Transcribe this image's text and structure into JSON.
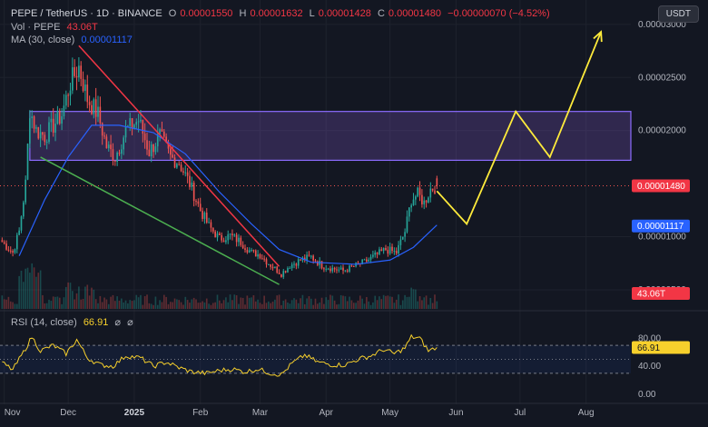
{
  "header": {
    "symbol": "PEPE / TetherUS · 1D · BINANCE",
    "open_label": "O",
    "open": "0.00001550",
    "high_label": "H",
    "high": "0.00001632",
    "low_label": "L",
    "low": "0.00001428",
    "close_label": "C",
    "close": "0.00001480",
    "change": "−0.00000070 (−4.52%)",
    "vol_label": "Vol · PEPE",
    "vol_value": "43.06T",
    "ma_label": "MA (30, close)",
    "ma_value": "0.00001117",
    "rsi_label": "RSI (14, close)",
    "rsi_value": "66.91",
    "eye_icon_1": "⌀",
    "eye_icon_2": "⌀"
  },
  "currency": "USDT",
  "colors": {
    "up": "#26a69a",
    "down": "#ef5350",
    "ma": "#2962ff",
    "rsi": "#f7d02c",
    "zone": "#7e57c2",
    "trend_red": "#f23645",
    "trend_green": "#4caf50",
    "projection": "#ffeb3b",
    "background": "#131722"
  },
  "price_tags": {
    "last_price": "0.00001480",
    "ma_price": "0.00001117",
    "volume": "43.06T",
    "rsi": "66.91"
  },
  "chart_data": [
    {
      "type": "candlestick",
      "title": "PEPE / TetherUS · 1D · BINANCE",
      "y_ticks": [
        "0.00003000",
        "0.00002500",
        "0.00002000",
        "0.00001000",
        "0.00000500"
      ],
      "y_tick_values": [
        3e-05,
        2.5e-05,
        2e-05,
        1e-05,
        5e-06
      ],
      "ylim": [
        3.2e-06,
        3.23e-05
      ],
      "x_ticks": [
        "Nov",
        "Dec",
        "2025",
        "Feb",
        "Mar",
        "Apr",
        "May",
        "Jun",
        "Jul",
        "Aug"
      ],
      "x_tick_dates": [
        "2024-11-01",
        "2024-12-01",
        "2025-01-01",
        "2025-02-01",
        "2025-03-01",
        "2025-04-01",
        "2025-05-01",
        "2025-06-01",
        "2025-07-01",
        "2025-08-01"
      ],
      "xlim": [
        "2024-10-30",
        "2025-08-22"
      ],
      "close_series": {
        "start_date": "2024-10-31",
        "end_date": "2025-05-23",
        "values_key_dates": [
          [
            "2024-10-31",
            9.5e-06
          ],
          [
            "2024-11-05",
            8.5e-06
          ],
          [
            "2024-11-08",
            1.05e-05
          ],
          [
            "2024-11-11",
            1.5e-05
          ],
          [
            "2024-11-13",
            2.2e-05
          ],
          [
            "2024-11-16",
            2e-05
          ],
          [
            "2024-11-20",
            1.95e-05
          ],
          [
            "2024-11-24",
            2.05e-05
          ],
          [
            "2024-11-28",
            2.15e-05
          ],
          [
            "2024-12-02",
            2.45e-05
          ],
          [
            "2024-12-06",
            2.6e-05
          ],
          [
            "2024-12-10",
            2.3e-05
          ],
          [
            "2024-12-15",
            2.15e-05
          ],
          [
            "2024-12-19",
            1.85e-05
          ],
          [
            "2024-12-23",
            1.75e-05
          ],
          [
            "2024-12-28",
            2e-05
          ],
          [
            "2025-01-03",
            2.1e-05
          ],
          [
            "2025-01-08",
            1.8e-05
          ],
          [
            "2025-01-13",
            1.95e-05
          ],
          [
            "2025-01-18",
            1.75e-05
          ],
          [
            "2025-01-22",
            1.7e-05
          ],
          [
            "2025-01-27",
            1.5e-05
          ],
          [
            "2025-02-01",
            1.25e-05
          ],
          [
            "2025-02-05",
            1.1e-05
          ],
          [
            "2025-02-10",
            9.8e-06
          ],
          [
            "2025-02-15",
            1.01e-05
          ],
          [
            "2025-02-20",
            9.5e-06
          ],
          [
            "2025-02-25",
            8.5e-06
          ],
          [
            "2025-03-01",
            8.3e-06
          ],
          [
            "2025-03-05",
            7.5e-06
          ],
          [
            "2025-03-11",
            6.5e-06
          ],
          [
            "2025-03-15",
            7.3e-06
          ],
          [
            "2025-03-20",
            7.8e-06
          ],
          [
            "2025-03-25",
            8.1e-06
          ],
          [
            "2025-03-30",
            7.3e-06
          ],
          [
            "2025-04-04",
            7e-06
          ],
          [
            "2025-04-09",
            6.8e-06
          ],
          [
            "2025-04-14",
            7.2e-06
          ],
          [
            "2025-04-19",
            7.6e-06
          ],
          [
            "2025-04-24",
            8.2e-06
          ],
          [
            "2025-04-29",
            8.8e-06
          ],
          [
            "2025-05-04",
            8.5e-06
          ],
          [
            "2025-05-08",
            1.05e-05
          ],
          [
            "2025-05-11",
            1.35e-05
          ],
          [
            "2025-05-14",
            1.4e-05
          ],
          [
            "2025-05-17",
            1.32e-05
          ],
          [
            "2025-05-20",
            1.45e-05
          ],
          [
            "2025-05-23",
            1.48e-05
          ]
        ]
      },
      "ma_30": [
        [
          "2024-11-08",
          8.2e-06
        ],
        [
          "2024-11-20",
          1.35e-05
        ],
        [
          "2024-12-01",
          1.75e-05
        ],
        [
          "2024-12-12",
          2.05e-05
        ],
        [
          "2024-12-25",
          2.05e-05
        ],
        [
          "2025-01-10",
          1.98e-05
        ],
        [
          "2025-01-25",
          1.78e-05
        ],
        [
          "2025-02-10",
          1.42e-05
        ],
        [
          "2025-02-25",
          1.12e-05
        ],
        [
          "2025-03-10",
          8.8e-06
        ],
        [
          "2025-03-25",
          7.6e-06
        ],
        [
          "2025-04-15",
          7.4e-06
        ],
        [
          "2025-05-01",
          7.8e-06
        ],
        [
          "2025-05-12",
          9e-06
        ],
        [
          "2025-05-23",
          1.11e-05
        ]
      ],
      "resistance_zone": [
        1.72e-05,
        2.18e-05
      ],
      "trendline_red": [
        [
          "2024-12-06",
          2.8e-05
        ],
        [
          "2025-03-10",
          7.2e-06
        ]
      ],
      "trendline_green": [
        [
          "2024-11-18",
          1.75e-05
        ],
        [
          "2025-03-10",
          5.5e-06
        ]
      ],
      "projection_path": [
        [
          "2025-05-23",
          1.43e-05
        ],
        [
          "2025-06-06",
          1.12e-05
        ],
        [
          "2025-06-29",
          2.18e-05
        ],
        [
          "2025-07-15",
          1.75e-05
        ],
        [
          "2025-08-08",
          2.93e-05
        ]
      ],
      "last_price_line": 1.48e-05
    },
    {
      "type": "bar",
      "title": "Vol · PEPE",
      "last_value": "43.06T"
    },
    {
      "type": "line",
      "title": "RSI (14, close)",
      "y_ticks": [
        "80.00",
        "40.00",
        "0.00"
      ],
      "y_tick_values": [
        80,
        40,
        0
      ],
      "ylim": [
        -4,
        100
      ],
      "bands": [
        70,
        50,
        30
      ],
      "key_points": [
        [
          "2024-10-31",
          45
        ],
        [
          "2024-11-05",
          35
        ],
        [
          "2024-11-10",
          60
        ],
        [
          "2024-11-14",
          82
        ],
        [
          "2024-11-18",
          62
        ],
        [
          "2024-11-24",
          70
        ],
        [
          "2024-11-30",
          58
        ],
        [
          "2024-12-05",
          78
        ],
        [
          "2024-12-10",
          52
        ],
        [
          "2024-12-16",
          42
        ],
        [
          "2024-12-22",
          40
        ],
        [
          "2024-12-28",
          55
        ],
        [
          "2025-01-04",
          52
        ],
        [
          "2025-01-10",
          40
        ],
        [
          "2025-01-16",
          46
        ],
        [
          "2025-01-22",
          38
        ],
        [
          "2025-01-28",
          32
        ],
        [
          "2025-02-04",
          30
        ],
        [
          "2025-02-10",
          34
        ],
        [
          "2025-02-16",
          36
        ],
        [
          "2025-02-22",
          32
        ],
        [
          "2025-02-28",
          36
        ],
        [
          "2025-03-06",
          30
        ],
        [
          "2025-03-11",
          28
        ],
        [
          "2025-03-16",
          44
        ],
        [
          "2025-03-22",
          56
        ],
        [
          "2025-03-28",
          46
        ],
        [
          "2025-04-04",
          42
        ],
        [
          "2025-04-10",
          42
        ],
        [
          "2025-04-16",
          50
        ],
        [
          "2025-04-22",
          55
        ],
        [
          "2025-04-28",
          64
        ],
        [
          "2025-05-03",
          58
        ],
        [
          "2025-05-08",
          66
        ],
        [
          "2025-05-11",
          82
        ],
        [
          "2025-05-15",
          80
        ],
        [
          "2025-05-19",
          62
        ],
        [
          "2025-05-23",
          66.91
        ]
      ]
    }
  ]
}
